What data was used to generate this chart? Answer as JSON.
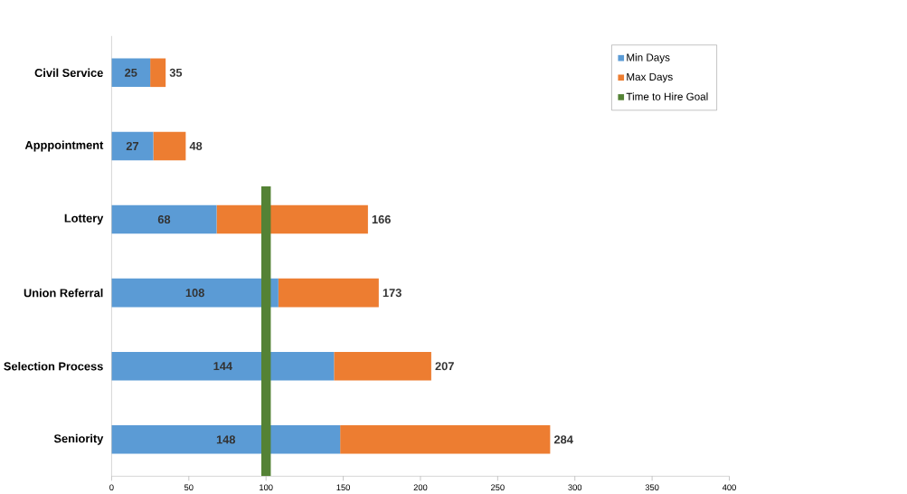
{
  "chart_data": {
    "type": "bar",
    "orientation": "horizontal",
    "stacked": true,
    "categories": [
      "Civil Service",
      "Apppointment",
      "Lottery",
      "Union Referral",
      "Selection Process",
      "Seniority"
    ],
    "series": [
      {
        "name": "Min Days",
        "color": "#5b9bd5",
        "values": [
          25,
          27,
          68,
          108,
          144,
          148
        ],
        "value_labels": [
          "25",
          "27",
          "68",
          "108",
          "144",
          "148"
        ]
      },
      {
        "name": "Max Days",
        "color": "#ed7d31",
        "values": [
          10,
          21,
          98,
          65,
          63,
          136
        ]
      }
    ],
    "totals": [
      "35",
      "48",
      "166",
      "173",
      "207",
      "284"
    ],
    "ref_lines": [
      {
        "axis": "x",
        "value": 100,
        "label": "Time to Hire Goal",
        "color": "#548235"
      }
    ],
    "xlim": [
      0,
      400
    ],
    "xticks": [
      0,
      50,
      100,
      150,
      200,
      250,
      300,
      350,
      400
    ],
    "grid": false,
    "legend": "top right"
  }
}
